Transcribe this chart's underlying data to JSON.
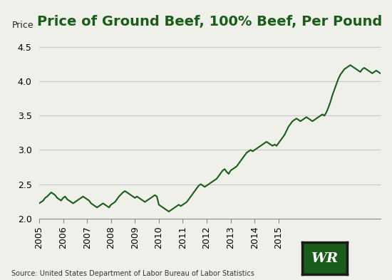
{
  "title": "Price of Ground Beef, 100% Beef, Per Pound",
  "price_label": "Price",
  "source": "Source: United States Department of Labor Bureau of Labor Statistics",
  "line_color": "#1a5c1a",
  "background_color": "#f0f0eb",
  "ylim": [
    2.0,
    4.7
  ],
  "yticks": [
    2.0,
    2.5,
    3.0,
    3.5,
    4.0,
    4.5
  ],
  "title_fontsize": 14,
  "prices": [
    2.22,
    2.24,
    2.26,
    2.3,
    2.32,
    2.35,
    2.38,
    2.36,
    2.34,
    2.3,
    2.28,
    2.26,
    2.3,
    2.32,
    2.28,
    2.26,
    2.24,
    2.22,
    2.24,
    2.26,
    2.28,
    2.3,
    2.32,
    2.3,
    2.28,
    2.26,
    2.22,
    2.2,
    2.18,
    2.16,
    2.18,
    2.2,
    2.22,
    2.2,
    2.18,
    2.16,
    2.2,
    2.22,
    2.24,
    2.28,
    2.32,
    2.35,
    2.38,
    2.4,
    2.38,
    2.36,
    2.34,
    2.32,
    2.3,
    2.32,
    2.3,
    2.28,
    2.26,
    2.24,
    2.26,
    2.28,
    2.3,
    2.32,
    2.34,
    2.32,
    2.2,
    2.18,
    2.16,
    2.14,
    2.12,
    2.1,
    2.12,
    2.14,
    2.16,
    2.18,
    2.2,
    2.18,
    2.2,
    2.22,
    2.24,
    2.28,
    2.32,
    2.36,
    2.4,
    2.44,
    2.48,
    2.5,
    2.48,
    2.46,
    2.48,
    2.5,
    2.52,
    2.54,
    2.56,
    2.58,
    2.62,
    2.66,
    2.7,
    2.72,
    2.68,
    2.65,
    2.7,
    2.72,
    2.74,
    2.76,
    2.8,
    2.84,
    2.88,
    2.92,
    2.96,
    2.98,
    3.0,
    2.98,
    3.0,
    3.02,
    3.04,
    3.06,
    3.08,
    3.1,
    3.12,
    3.1,
    3.08,
    3.06,
    3.08,
    3.06,
    3.1,
    3.14,
    3.18,
    3.22,
    3.28,
    3.34,
    3.38,
    3.42,
    3.44,
    3.46,
    3.44,
    3.42,
    3.44,
    3.46,
    3.48,
    3.46,
    3.44,
    3.42,
    3.44,
    3.46,
    3.48,
    3.5,
    3.52,
    3.5,
    3.55,
    3.62,
    3.7,
    3.8,
    3.88,
    3.96,
    4.04,
    4.1,
    4.14,
    4.18,
    4.2,
    4.22,
    4.24,
    4.22,
    4.2,
    4.18,
    4.16,
    4.14,
    4.18,
    4.2,
    4.18,
    4.16,
    4.14,
    4.12,
    4.14,
    4.16,
    4.14,
    4.12
  ],
  "year_ticks": [
    0,
    12,
    24,
    36,
    48,
    60,
    72,
    84,
    96,
    108,
    120
  ],
  "year_labels": [
    "2005",
    "2006",
    "2007",
    "2008",
    "2009",
    "2010",
    "2011",
    "2012",
    "2013",
    "2014",
    "2015"
  ],
  "logo_box_color": "#1a5c1a",
  "logo_border_color": "#1a1a1a",
  "logo_text": "WR"
}
